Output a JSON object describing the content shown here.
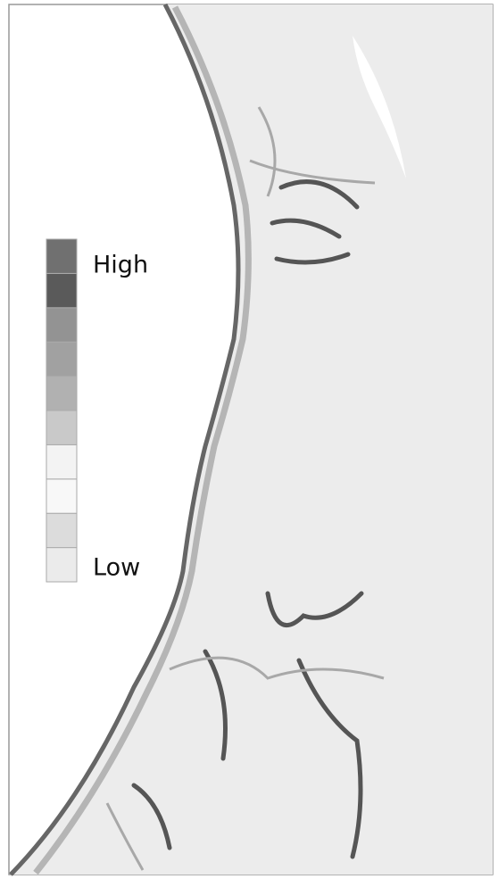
{
  "legend": {
    "high_label": "High",
    "low_label": "Low",
    "colors": [
      "#707070",
      "#5a5a5a",
      "#939393",
      "#a1a1a1",
      "#b1b1b1",
      "#c9c9c9",
      "#f3f3f3",
      "#f8f8f8",
      "#dcdcdc",
      "#ebebeb"
    ]
  }
}
